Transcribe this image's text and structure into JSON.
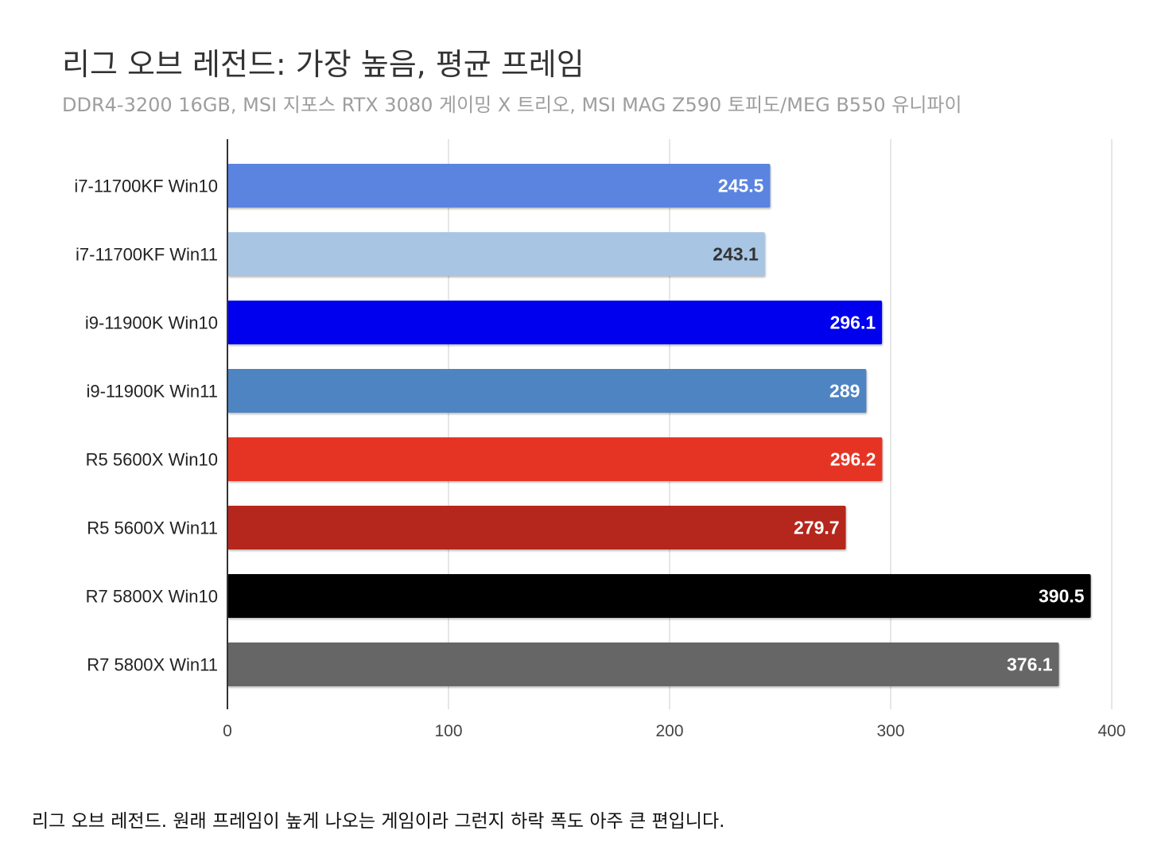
{
  "chart_data": {
    "type": "bar",
    "orientation": "horizontal",
    "title": "리그 오브 레전드: 가장 높음, 평균 프레임",
    "subtitle": "DDR4-3200 16GB, MSI 지포스 RTX 3080 게이밍 X 트리오, MSI MAG Z590 토피도/MEG B550 유니파이",
    "categories": [
      "i7-11700KF Win10",
      "i7-11700KF Win11",
      "i9-11900K Win10",
      "i9-11900K Win11",
      "R5 5600X Win10",
      "R5 5600X Win11",
      "R7 5800X Win10",
      "R7 5800X Win11"
    ],
    "values": [
      245.5,
      243.1,
      296.1,
      289,
      296.2,
      279.7,
      390.5,
      376.1
    ],
    "value_labels": [
      "245.5",
      "243.1",
      "296.1",
      "289",
      "296.2",
      "279.7",
      "390.5",
      "376.1"
    ],
    "bar_colors": [
      "#5b84e0",
      "#a8c5e4",
      "#0000ee",
      "#4e84c2",
      "#e63424",
      "#b5261c",
      "#000000",
      "#666666"
    ],
    "label_colors": [
      "#ffffff",
      "#333333",
      "#ffffff",
      "#ffffff",
      "#ffffff",
      "#ffffff",
      "#ffffff",
      "#ffffff"
    ],
    "xlim": [
      0,
      400
    ],
    "xticks": [
      0,
      100,
      200,
      300,
      400
    ],
    "xtick_labels": [
      "0",
      "100",
      "200",
      "300",
      "400"
    ],
    "xlabel": "",
    "ylabel": "",
    "grid": true,
    "legend": "none"
  },
  "caption": "리그 오브 레전드. 원래 프레임이 높게 나오는 게임이라 그런지 하락 폭도 아주 큰 편입니다."
}
